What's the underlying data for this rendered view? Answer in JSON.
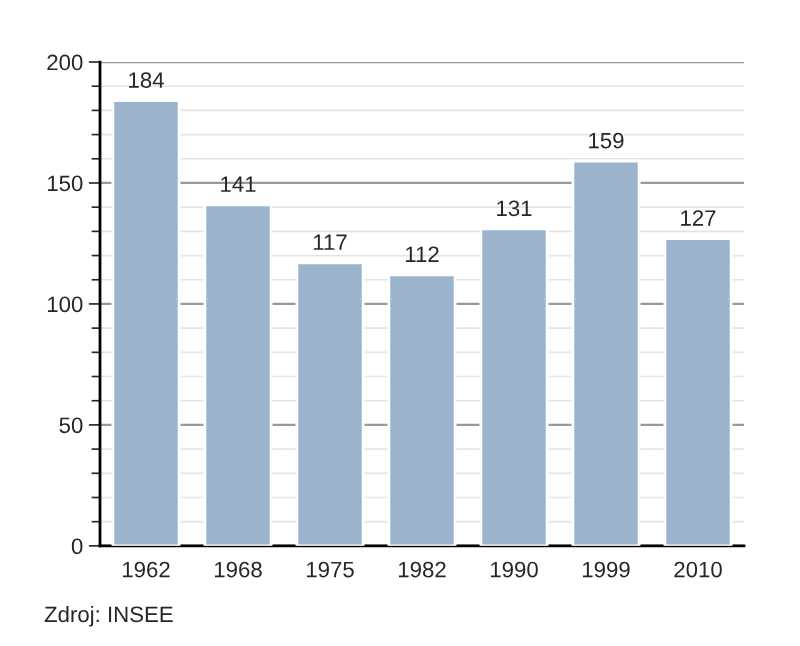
{
  "chart_data": {
    "type": "bar",
    "categories": [
      "1962",
      "1968",
      "1975",
      "1982",
      "1990",
      "1999",
      "2010"
    ],
    "values": [
      184,
      141,
      117,
      112,
      131,
      159,
      127
    ],
    "color": "#9bb3cc",
    "data_labels": true,
    "ylim": [
      0,
      200
    ],
    "yticks": [
      0,
      50,
      100,
      150,
      200
    ],
    "grid": "y",
    "annotations": [
      "Zdroj: INSEE"
    ]
  }
}
